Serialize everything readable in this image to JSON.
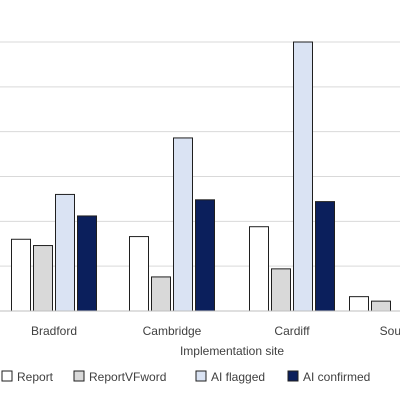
{
  "chart_data": {
    "type": "bar",
    "title": "",
    "xlabel": "Implementation site",
    "ylabel": "",
    "categories": [
      "Bradford",
      "Cambridge",
      "Cardiff",
      "Sout"
    ],
    "series": [
      {
        "name": "Report",
        "values": [
          80,
          83,
          94,
          16
        ],
        "color": "#ffffff"
      },
      {
        "name": "ReportVFword",
        "values": [
          73,
          38,
          47,
          11
        ],
        "color": "#d9d9d9"
      },
      {
        "name": "AI flagged",
        "values": [
          130,
          193,
          300,
          0
        ],
        "color": "#dae3f3"
      },
      {
        "name": "AI confirmed",
        "values": [
          106,
          124,
          122,
          0
        ],
        "color": "#0b1f5c"
      }
    ],
    "ylim": [
      0,
      300
    ],
    "grid": true,
    "legend_position": "bottom"
  }
}
